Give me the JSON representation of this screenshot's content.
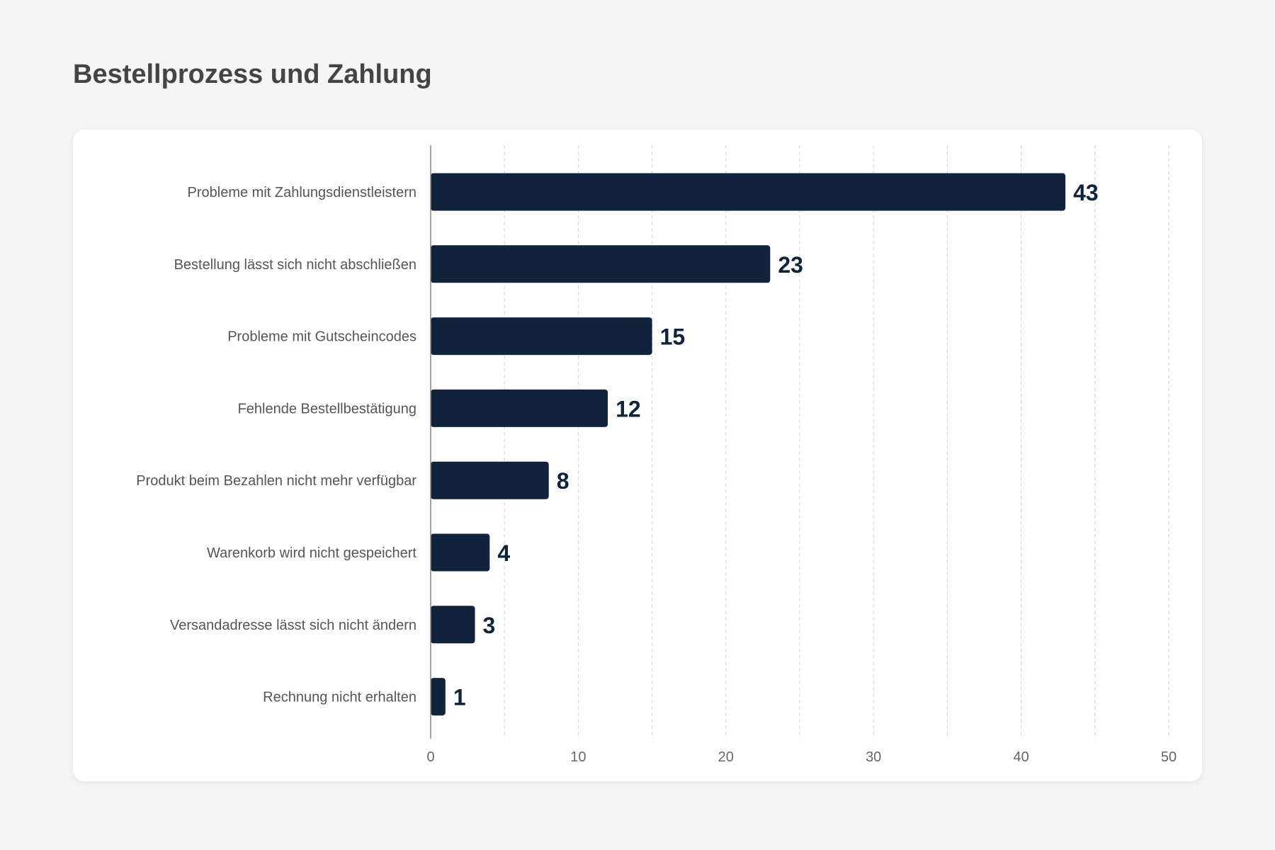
{
  "title": "Bestellprozess und Zahlung",
  "colors": {
    "bar": "#10233b",
    "grid": "#d9d9d9",
    "axis": "#888888",
    "background": "#f5f5f5",
    "card": "#ffffff"
  },
  "chart_data": {
    "type": "bar",
    "orientation": "horizontal",
    "title": "Bestellprozess und Zahlung",
    "xlabel": "",
    "ylabel": "",
    "categories": [
      "Probleme mit Zahlungsdienstleistern",
      "Bestellung lässt sich nicht abschließen",
      "Probleme mit Gutscheincodes",
      "Fehlende Bestellbestätigung",
      "Produkt beim Bezahlen nicht mehr verfügbar",
      "Warenkorb wird nicht gespeichert",
      "Versandadresse lässt sich nicht ändern",
      "Rechnung nicht erhalten"
    ],
    "values": [
      43,
      23,
      15,
      12,
      8,
      4,
      3,
      1
    ],
    "value_labels": [
      "43",
      "23",
      "15",
      "12",
      "8",
      "4",
      "3",
      "1"
    ],
    "xlim": [
      0,
      50
    ],
    "xticks": [
      0,
      10,
      20,
      30,
      40,
      50
    ],
    "xtick_labels": [
      "0",
      "10",
      "20",
      "30",
      "40",
      "50"
    ],
    "grid": "vertical-dashed",
    "legend": "none"
  }
}
